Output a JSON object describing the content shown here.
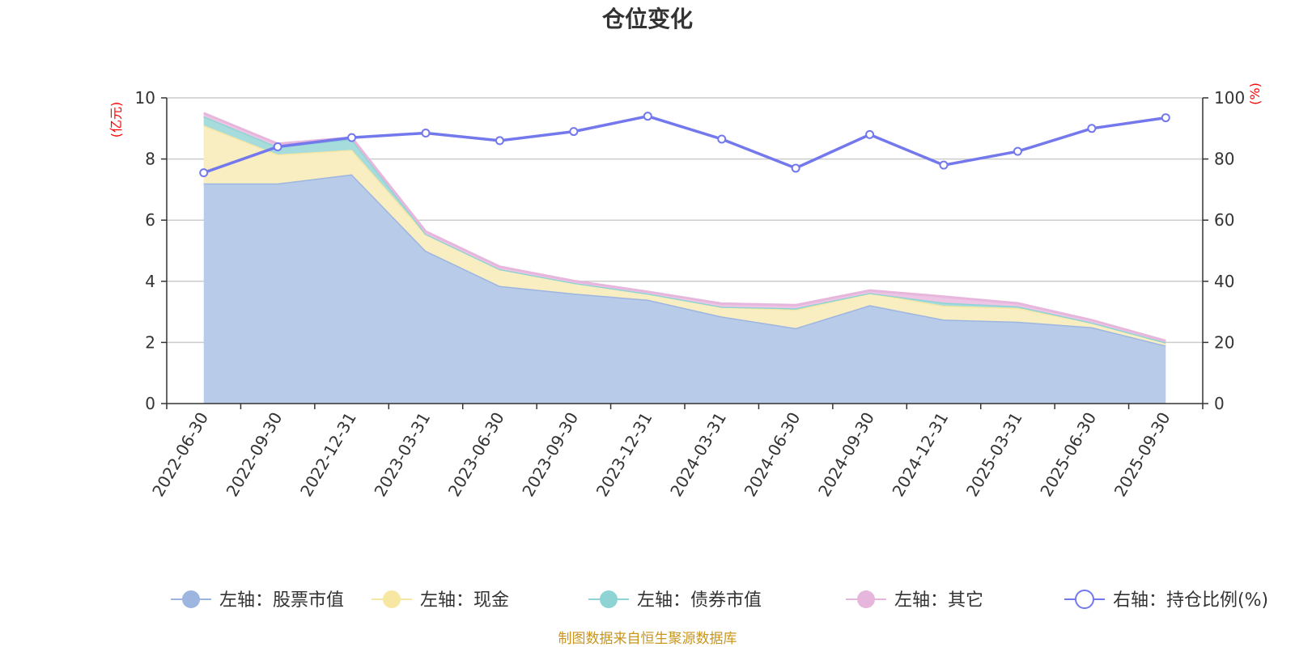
{
  "chart_data": {
    "type": "area",
    "title": "仓位变化",
    "categories": [
      "2022-06-30",
      "2022-09-30",
      "2022-12-31",
      "2023-03-31",
      "2023-06-30",
      "2023-09-30",
      "2023-12-31",
      "2024-03-31",
      "2024-06-30",
      "2024-09-30",
      "2024-12-31",
      "2025-03-31",
      "2025-06-30",
      "2025-09-30"
    ],
    "left_axis": {
      "unit": "(亿元)",
      "ylim": [
        0,
        10
      ],
      "ticks": [
        0,
        2,
        4,
        6,
        8,
        10
      ]
    },
    "right_axis": {
      "unit": "(%)",
      "ylim": [
        0,
        100
      ],
      "ticks": [
        0,
        20,
        40,
        60,
        80,
        100
      ]
    },
    "grid": true,
    "stacked_series": [
      {
        "name": "左轴：股票市值",
        "color": "#9db6e0",
        "fill": "#b8cbe9",
        "values": [
          7.2,
          7.2,
          7.5,
          5.0,
          3.85,
          3.6,
          3.4,
          2.85,
          2.47,
          3.22,
          2.75,
          2.68,
          2.5,
          1.9
        ]
      },
      {
        "name": "左轴：现金",
        "color": "#f7e7a3",
        "fill": "#f9edc2",
        "values": [
          1.9,
          0.95,
          0.8,
          0.55,
          0.55,
          0.35,
          0.2,
          0.32,
          0.6,
          0.4,
          0.45,
          0.45,
          0.15,
          0.1
        ]
      },
      {
        "name": "左轴：债券市值",
        "color": "#8fd4d4",
        "fill": "#a6dcdc",
        "values": [
          0.3,
          0.25,
          0.35,
          0.0,
          0.0,
          0.0,
          0.0,
          0.0,
          0.05,
          0.0,
          0.1,
          0.05,
          0.0,
          0.0
        ]
      },
      {
        "name": "左轴：其它",
        "color": "#e6b6dc",
        "fill": "#eec5e5",
        "values": [
          0.1,
          0.1,
          0.05,
          0.08,
          0.08,
          0.06,
          0.06,
          0.1,
          0.1,
          0.08,
          0.2,
          0.1,
          0.08,
          0.05
        ]
      }
    ],
    "line_series": {
      "name": "右轴：持仓比例(%)",
      "color": "#7378ec",
      "values": [
        75.5,
        84,
        87,
        88.5,
        86,
        89,
        94,
        86.5,
        77,
        88,
        78,
        82.5,
        90,
        93.5
      ]
    },
    "legend_position": "bottom-center",
    "source": "制图数据来自恒生聚源数据库"
  }
}
